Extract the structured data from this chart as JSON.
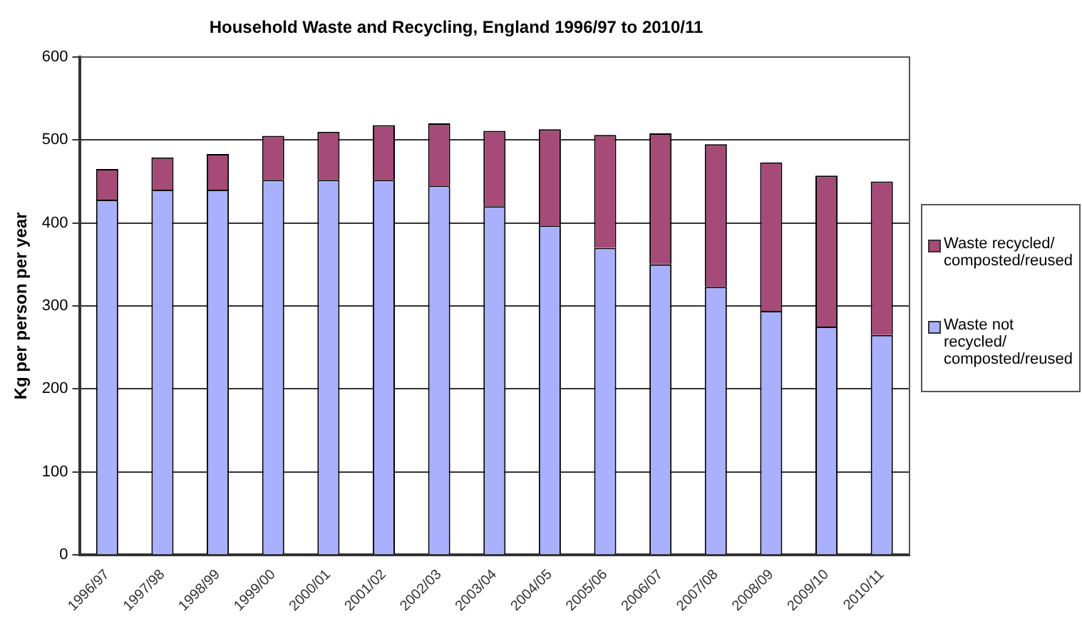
{
  "chart_data": {
    "type": "bar",
    "title": "Household Waste and Recycling, England 1996/97 to 2010/11",
    "ylabel": "Kg per person per year",
    "categories": [
      "1996/97",
      "1997/98",
      "1998/99",
      "1999/00",
      "2000/01",
      "2001/02",
      "2002/03",
      "2003/04",
      "2004/05",
      "2005/06",
      "2006/07",
      "2007/08",
      "2008/09",
      "2009/10",
      "2010/11"
    ],
    "stacked": true,
    "series": [
      {
        "name": "Waste not recycled/ composted/reused",
        "color": "#a9b0fe",
        "values": [
          428,
          440,
          440,
          452,
          452,
          452,
          445,
          420,
          397,
          370,
          350,
          323,
          294,
          275,
          265
        ]
      },
      {
        "name": "Waste recycled/ composted/reused",
        "color": "#a64a78",
        "values": [
          37,
          39,
          43,
          53,
          58,
          66,
          75,
          91,
          116,
          136,
          158,
          172,
          179,
          182,
          185
        ]
      }
    ],
    "ylim": [
      0,
      600
    ],
    "yticks": [
      0,
      100,
      200,
      300,
      400,
      500,
      600
    ],
    "grid": "y",
    "legend": "right"
  }
}
